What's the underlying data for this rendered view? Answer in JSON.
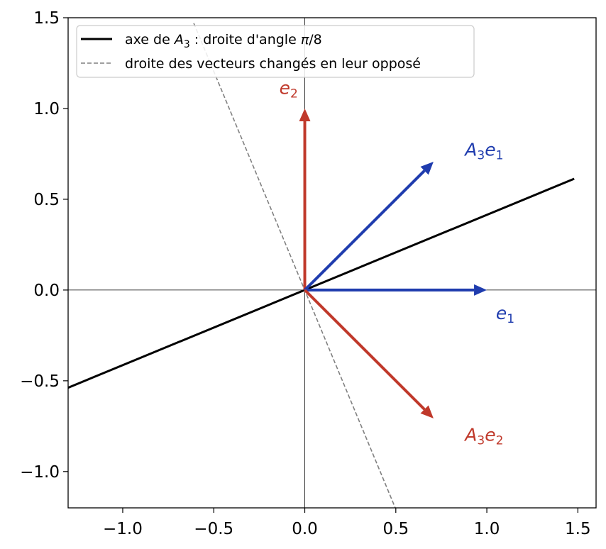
{
  "chart_data": {
    "type": "line",
    "title": "",
    "xlabel": "",
    "ylabel": "",
    "xlim": [
      -1.3,
      1.6
    ],
    "ylim": [
      -1.2,
      1.5
    ],
    "grid": false,
    "legend_placement": "top-left",
    "x_ticks": [
      -1.0,
      -0.5,
      0.0,
      0.5,
      1.0,
      1.5
    ],
    "y_ticks": [
      -1.0,
      -0.5,
      0.0,
      0.5,
      1.0,
      1.5
    ],
    "x_tick_labels": [
      "−1.0",
      "−0.5",
      "0.0",
      "0.5",
      "1.0",
      "1.5"
    ],
    "y_tick_labels": [
      "−1.0",
      "−0.5",
      "0.0",
      "0.5",
      "1.0",
      "1.5"
    ],
    "lines": [
      {
        "name": "axe de A₃ : droite d'angle π/8",
        "legend_parts": [
          "axe de ",
          "A",
          "3",
          " : droite d'angle ",
          "π",
          "/8"
        ],
        "style": "solid",
        "color": "#000000",
        "points": [
          [
            -1.3,
            -0.538
          ],
          [
            1.48,
            0.613
          ]
        ]
      },
      {
        "name": "droite des vecteurs changés en leur opposé",
        "legend_parts": [
          "droite des vecteurs changés en leur opposé"
        ],
        "style": "dashed",
        "color": "#808080",
        "points": [
          [
            -0.61,
            1.47
          ],
          [
            0.5,
            -1.207
          ]
        ]
      }
    ],
    "vectors": [
      {
        "name": "e1",
        "label_parts": [
          "e",
          "1"
        ],
        "from": [
          0,
          0
        ],
        "to": [
          1.0,
          0.0
        ],
        "color": "#1f3cae",
        "label_at": [
          1.05,
          -0.16
        ]
      },
      {
        "name": "e2",
        "label_parts": [
          "e",
          "2"
        ],
        "from": [
          0,
          0
        ],
        "to": [
          0.0,
          1.0
        ],
        "color": "#c0392b",
        "label_at": [
          -0.14,
          1.08
        ]
      },
      {
        "name": "A3e1",
        "label_parts": [
          "A",
          "3",
          "e",
          "1"
        ],
        "from": [
          0,
          0
        ],
        "to": [
          0.707,
          0.707
        ],
        "color": "#1f3cae",
        "label_at": [
          0.88,
          0.74
        ]
      },
      {
        "name": "A3e2",
        "label_parts": [
          "A",
          "3",
          "e",
          "2"
        ],
        "from": [
          0,
          0
        ],
        "to": [
          0.707,
          -0.707
        ],
        "color": "#c0392b",
        "label_at": [
          0.88,
          -0.83
        ]
      }
    ]
  }
}
